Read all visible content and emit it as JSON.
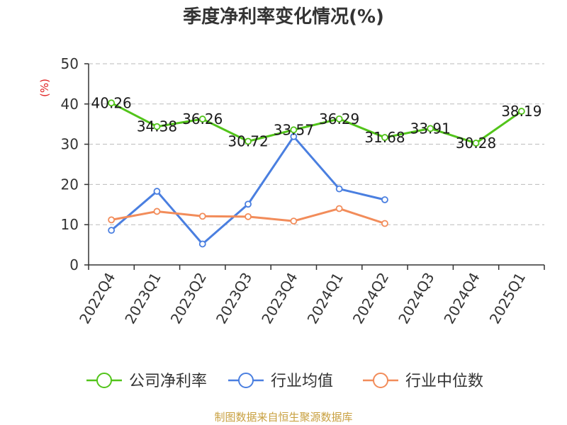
{
  "chart_data": {
    "type": "line",
    "title": "季度净利率变化情况(%)",
    "ylabel": "(%)",
    "xlabel": "",
    "ylim": [
      0,
      50
    ],
    "yticks": [
      0,
      10,
      20,
      30,
      40,
      50
    ],
    "grid": true,
    "legend_position": "bottom",
    "categories": [
      "2022Q4",
      "2023Q1",
      "2023Q2",
      "2023Q3",
      "2023Q4",
      "2024Q1",
      "2024Q2",
      "2024Q3",
      "2024Q4",
      "2025Q1"
    ],
    "series": [
      {
        "name": "公司净利率",
        "color": "#52c41a",
        "values": [
          40.26,
          34.38,
          36.26,
          30.72,
          33.57,
          36.29,
          31.68,
          33.91,
          30.28,
          38.19
        ],
        "labels": [
          "40.26",
          "34.38",
          "36.26",
          "30.72",
          "33.57",
          "36.29",
          "31.68",
          "33.91",
          "30.28",
          "38.19"
        ]
      },
      {
        "name": "行业均值",
        "color": "#4a7fe0",
        "values": [
          8.6,
          18.3,
          5.2,
          15.1,
          31.9,
          18.9,
          16.2,
          null,
          null,
          null
        ]
      },
      {
        "name": "行业中位数",
        "color": "#f28c5a",
        "values": [
          11.2,
          13.3,
          12.1,
          12.0,
          10.9,
          14.0,
          10.3,
          null,
          null,
          null
        ]
      }
    ]
  },
  "footer": {
    "source": "制图数据来自恒生聚源数据库"
  }
}
